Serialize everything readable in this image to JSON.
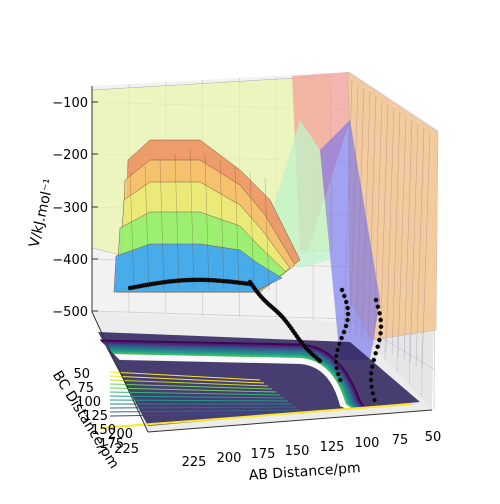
{
  "chart_data": {
    "type": "surface3d",
    "title": "",
    "zlabel": "V/kJ.mol⁻¹",
    "xlabel": "AB Distance/pm",
    "ylabel": "BC Distance/pm",
    "z_ticks": [
      "−100",
      "−200",
      "−300",
      "−400",
      "−500"
    ],
    "x_ticks": [
      "225",
      "200",
      "175",
      "150",
      "125",
      "100",
      "75",
      "50"
    ],
    "y_ticks": [
      "50",
      "75",
      "100",
      "125",
      "150",
      "175",
      "200",
      "225"
    ],
    "zlim": [
      -560,
      -80
    ],
    "xlim": [
      50,
      240
    ],
    "ylim": [
      50,
      240
    ],
    "colormap_surface": "turbo",
    "colormap_contour": "viridis",
    "trajectory_color": "#000000",
    "surface_profile_bands": [
      {
        "level": -530,
        "color": "#6a5cf4"
      },
      {
        "level": -470,
        "color": "#3aa0ff"
      },
      {
        "level": -410,
        "color": "#34e0c4"
      },
      {
        "level": -360,
        "color": "#8ef070"
      },
      {
        "level": -310,
        "color": "#e9f07a"
      },
      {
        "level": -270,
        "color": "#f6c86e"
      },
      {
        "level": -235,
        "color": "#ef8c5a"
      }
    ],
    "trajectory": {
      "description_points_bc_ab": [
        [
          210,
          240
        ],
        [
          200,
          150
        ],
        [
          175,
          120
        ],
        [
          150,
          110
        ],
        [
          125,
          100
        ],
        [
          100,
          95
        ],
        [
          75,
          95
        ]
      ]
    }
  }
}
